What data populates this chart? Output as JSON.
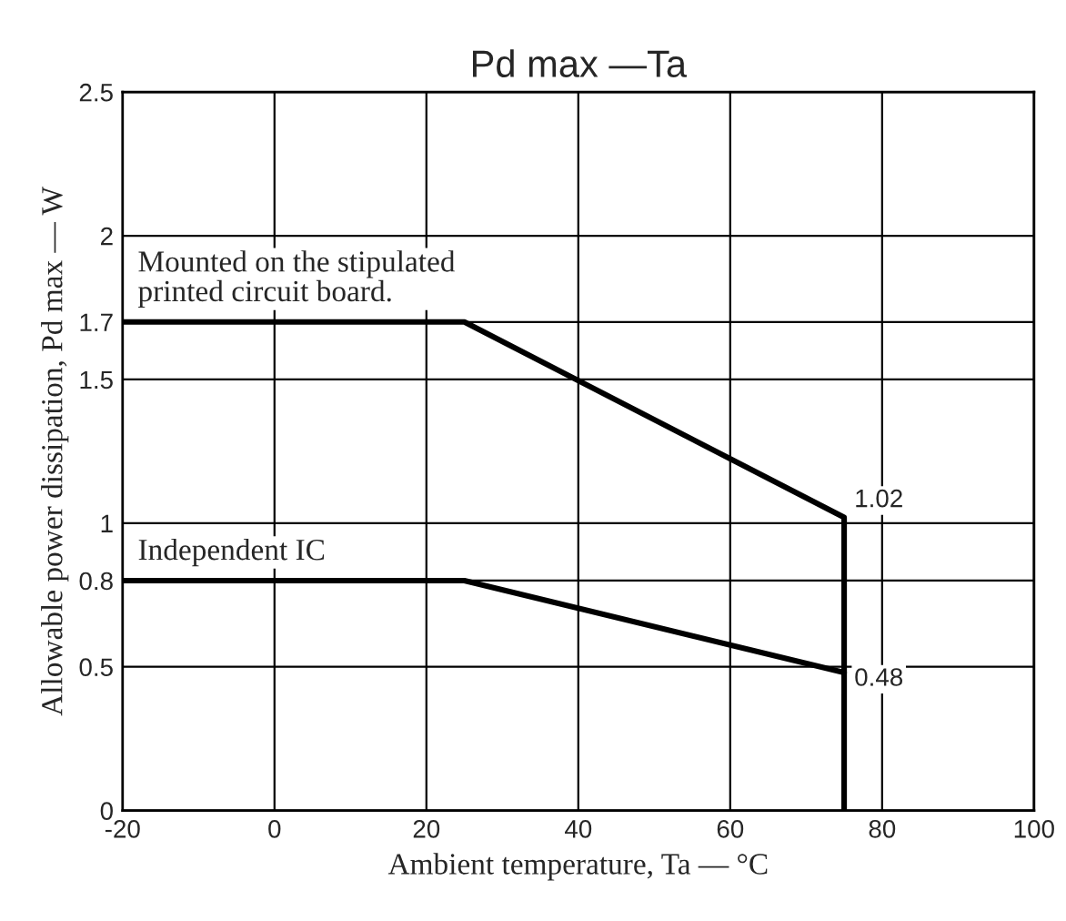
{
  "chart_data": {
    "type": "line",
    "title": "Pd max —Ta",
    "xlabel": "Ambient temperature, Ta — °C",
    "ylabel": "Allowable power dissipation, Pd max — W",
    "series": [
      {
        "name": "Mounted on the stipulated\nprinted circuit board.",
        "color": "#000000",
        "x": [
          -20,
          25,
          75,
          75
        ],
        "values": [
          1.7,
          1.7,
          1.02,
          0
        ],
        "value_labels": [
          null,
          null,
          "1.02",
          null
        ]
      },
      {
        "name": "Independent IC",
        "color": "#000000",
        "x": [
          -20,
          25,
          75
        ],
        "values": [
          0.8,
          0.8,
          0.48
        ],
        "value_labels": [
          null,
          null,
          "0.48"
        ]
      }
    ],
    "xlim": [
      -20,
      100
    ],
    "xticks": [
      -20,
      0,
      20,
      40,
      60,
      80,
      100
    ],
    "ylim": [
      0,
      2.5
    ],
    "yticks": [
      0,
      0.5,
      0.8,
      1,
      1.5,
      1.7,
      2,
      2.5
    ],
    "grid": true,
    "legend": false,
    "marker": "none",
    "line_style": "solid"
  }
}
